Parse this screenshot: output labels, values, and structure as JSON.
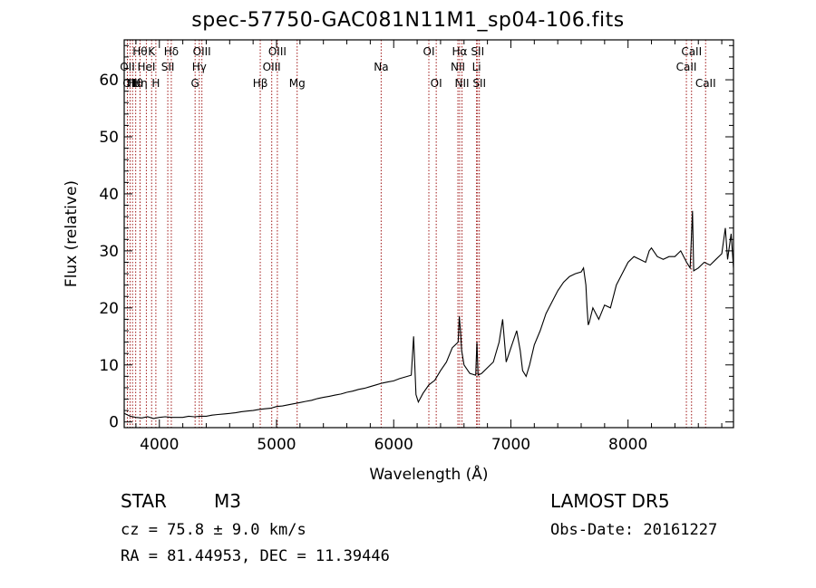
{
  "chart_data": {
    "type": "line",
    "title": "spec-57750-GAC081N11M1_sp04-106.fits",
    "xlabel": "Wavelength (Å)",
    "ylabel": "Flux (relative)",
    "xlim": [
      3700,
      8900
    ],
    "ylim": [
      -1,
      67
    ],
    "xticks": [
      4000,
      5000,
      6000,
      7000,
      8000
    ],
    "yticks": [
      0,
      10,
      20,
      30,
      40,
      50,
      60
    ],
    "series": [
      {
        "color": "#000000",
        "x": [
          3700,
          3750,
          3800,
          3850,
          3900,
          3950,
          4000,
          4050,
          4100,
          4150,
          4200,
          4250,
          4300,
          4350,
          4400,
          4450,
          4500,
          4550,
          4600,
          4650,
          4700,
          4750,
          4800,
          4850,
          4900,
          4950,
          5000,
          5050,
          5100,
          5150,
          5200,
          5250,
          5300,
          5350,
          5400,
          5450,
          5500,
          5550,
          5600,
          5650,
          5700,
          5750,
          5800,
          5850,
          5900,
          5950,
          6000,
          6050,
          6100,
          6150,
          6170,
          6190,
          6210,
          6250,
          6300,
          6350,
          6400,
          6450,
          6500,
          6550,
          6560,
          6570,
          6580,
          6600,
          6650,
          6700,
          6710,
          6720,
          6750,
          6800,
          6850,
          6900,
          6930,
          6960,
          7000,
          7050,
          7080,
          7100,
          7130,
          7160,
          7200,
          7250,
          7300,
          7350,
          7400,
          7450,
          7500,
          7550,
          7600,
          7620,
          7640,
          7650,
          7660,
          7670,
          7700,
          7750,
          7800,
          7850,
          7900,
          7950,
          8000,
          8050,
          8100,
          8150,
          8180,
          8200,
          8250,
          8300,
          8350,
          8400,
          8450,
          8500,
          8530,
          8550,
          8560,
          8600,
          8650,
          8700,
          8750,
          8800,
          8830,
          8850,
          8880,
          8900
        ],
        "y": [
          1.5,
          1.0,
          0.8,
          0.7,
          0.9,
          0.6,
          0.8,
          0.9,
          0.8,
          0.8,
          0.8,
          1.0,
          0.9,
          1.0,
          1.0,
          1.2,
          1.3,
          1.4,
          1.5,
          1.6,
          1.8,
          1.9,
          2.0,
          2.2,
          2.3,
          2.4,
          2.7,
          2.8,
          3.0,
          3.2,
          3.4,
          3.6,
          3.8,
          4.1,
          4.3,
          4.5,
          4.7,
          4.9,
          5.2,
          5.4,
          5.7,
          5.9,
          6.2,
          6.5,
          6.8,
          7.0,
          7.2,
          7.6,
          7.9,
          8.2,
          15.0,
          4.8,
          3.5,
          5.0,
          6.5,
          7.3,
          9.0,
          10.5,
          13.0,
          14.0,
          18.5,
          16.0,
          12.5,
          10.0,
          8.5,
          8.2,
          14.0,
          8.2,
          8.5,
          9.5,
          10.5,
          14.0,
          18.0,
          10.5,
          13.0,
          16.0,
          12.5,
          9.0,
          8.0,
          10.0,
          13.5,
          16.0,
          19.0,
          21.0,
          23.0,
          24.5,
          25.5,
          26.0,
          26.3,
          27.0,
          24.0,
          20.0,
          17.0,
          17.5,
          20.0,
          18.0,
          20.5,
          20.0,
          24.0,
          26.0,
          28.0,
          29.0,
          28.5,
          28.0,
          30.0,
          30.5,
          29.0,
          28.5,
          29.0,
          29.0,
          30.0,
          28.0,
          27.0,
          37.0,
          26.5,
          27.0,
          28.0,
          27.5,
          28.5,
          29.5,
          34.0,
          28.5,
          33.0,
          27.0
        ]
      }
    ],
    "lines": [
      {
        "x": 3727,
        "row": 1,
        "label": "OII"
      },
      {
        "x": 3750,
        "row": 2,
        "label": "OII"
      },
      {
        "x": 3771,
        "row": 2,
        "label": "Hι"
      },
      {
        "x": 3798,
        "row": 2,
        "label": "Hθ"
      },
      {
        "x": 3835,
        "row": 0,
        "label": "Hθ"
      },
      {
        "x": 3835,
        "row": 2,
        "label": "Hη"
      },
      {
        "x": 3889,
        "row": 1,
        "label": "HeI"
      },
      {
        "x": 3934,
        "row": 0,
        "label": "K"
      },
      {
        "x": 3970,
        "row": 2,
        "label": "H"
      },
      {
        "x": 4072,
        "row": 1,
        "label": "SII"
      },
      {
        "x": 4102,
        "row": 0,
        "label": "Hδ"
      },
      {
        "x": 4305,
        "row": 2,
        "label": "G"
      },
      {
        "x": 4341,
        "row": 1,
        "label": "Hγ"
      },
      {
        "x": 4363,
        "row": 0,
        "label": "OIII"
      },
      {
        "x": 4861,
        "row": 2,
        "label": "Hβ"
      },
      {
        "x": 4959,
        "row": 1,
        "label": "OIII"
      },
      {
        "x": 5007,
        "row": 0,
        "label": "OIII"
      },
      {
        "x": 5176,
        "row": 2,
        "label": "Mg"
      },
      {
        "x": 5893,
        "row": 1,
        "label": "Na"
      },
      {
        "x": 6300,
        "row": 0,
        "label": "OI"
      },
      {
        "x": 6363,
        "row": 2,
        "label": "OI"
      },
      {
        "x": 6548,
        "row": 1,
        "label": "NII"
      },
      {
        "x": 6563,
        "row": 0,
        "label": "Hα"
      },
      {
        "x": 6583,
        "row": 2,
        "label": "NII"
      },
      {
        "x": 6707,
        "row": 1,
        "label": "Li"
      },
      {
        "x": 6716,
        "row": 0,
        "label": "SII"
      },
      {
        "x": 6731,
        "row": 2,
        "label": "SII"
      },
      {
        "x": 8498,
        "row": 1,
        "label": "CaII"
      },
      {
        "x": 8542,
        "row": 0,
        "label": "CaII"
      },
      {
        "x": 8662,
        "row": 2,
        "label": "CaII"
      }
    ]
  },
  "info": {
    "object_class": "STAR",
    "subclass": "M3",
    "survey": "LAMOST  DR5",
    "redshift": "cz = 75.8 ± 9.0 km/s",
    "obs_date": "Obs-Date: 20161227",
    "coords": "RA =  81.44953, DEC =  11.39446"
  }
}
